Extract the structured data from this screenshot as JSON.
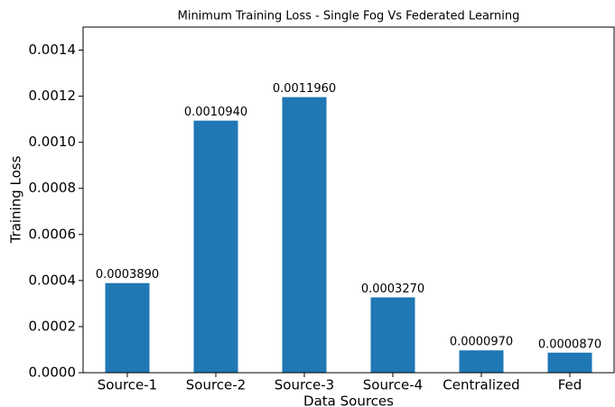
{
  "chart_data": {
    "type": "bar",
    "title": "Minimum Training Loss - Single Fog Vs Federated Learning",
    "xlabel": "Data Sources",
    "ylabel": "Training Loss",
    "categories": [
      "Source-1",
      "Source-2",
      "Source-3",
      "Source-4",
      "Centralized",
      "Fed"
    ],
    "values": [
      0.000389,
      0.001094,
      0.001196,
      0.000327,
      9.7e-05,
      8.7e-05
    ],
    "value_labels": [
      "0.0003890",
      "0.0010940",
      "0.0011960",
      "0.0003270",
      "0.0000970",
      "0.0000870"
    ],
    "color": "#1f77b4",
    "ylim": [
      0,
      0.0015
    ],
    "yticks": [
      {
        "value": 0,
        "label": "0.0000"
      },
      {
        "value": 0.0002,
        "label": "0.0002"
      },
      {
        "value": 0.0004,
        "label": "0.0004"
      },
      {
        "value": 0.0006,
        "label": "0.0006"
      },
      {
        "value": 0.0008,
        "label": "0.0008"
      },
      {
        "value": 0.001,
        "label": "0.0010"
      },
      {
        "value": 0.0012,
        "label": "0.0012"
      },
      {
        "value": 0.0014,
        "label": "0.0014"
      }
    ],
    "grid": false
  }
}
